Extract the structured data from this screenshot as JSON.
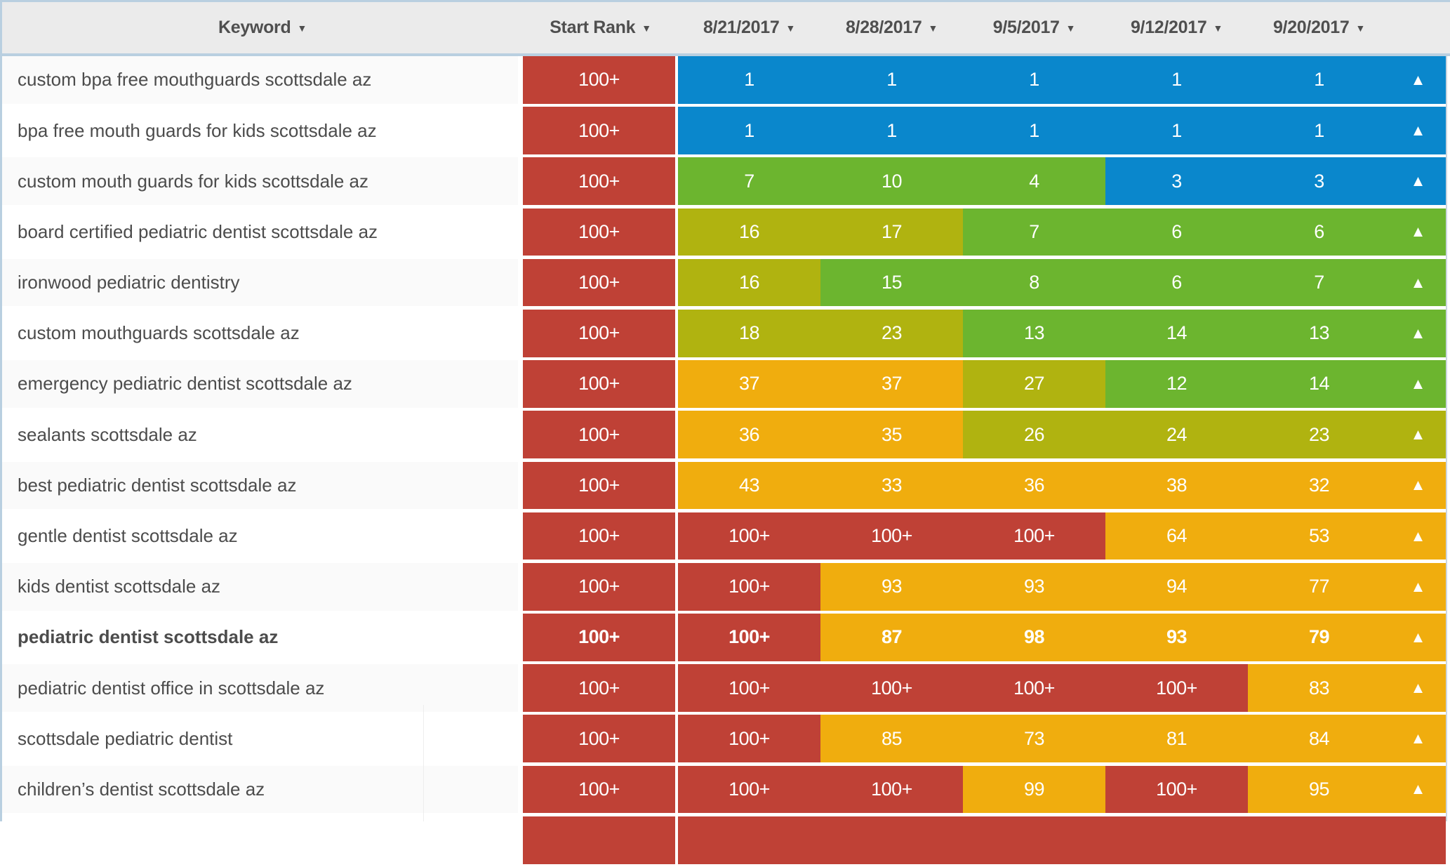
{
  "table": {
    "columns": [
      {
        "label": "Keyword",
        "sort_icon": "▼"
      },
      {
        "label": "Start Rank",
        "sort_icon": "▼"
      },
      {
        "label": "8/21/2017",
        "sort_icon": "▼"
      },
      {
        "label": "8/28/2017",
        "sort_icon": "▼"
      },
      {
        "label": "9/5/2017",
        "sort_icon": "▼"
      },
      {
        "label": "9/12/2017",
        "sort_icon": "▼"
      },
      {
        "label": "9/20/2017",
        "sort_icon": "▼"
      }
    ],
    "rows": [
      {
        "keyword": "custom bpa free mouthguards scottsdale az",
        "bold": false,
        "start_rank": "100+",
        "start_rank_color": "red",
        "cells": [
          {
            "text": "1",
            "color": "blue"
          },
          {
            "text": "1",
            "color": "blue"
          },
          {
            "text": "1",
            "color": "blue"
          },
          {
            "text": "1",
            "color": "blue"
          },
          {
            "text": "1",
            "color": "blue"
          }
        ],
        "trend": {
          "icon": "▲",
          "color": "blue"
        }
      },
      {
        "keyword": "bpa free mouth guards for kids scottsdale az",
        "bold": false,
        "start_rank": "100+",
        "start_rank_color": "red",
        "cells": [
          {
            "text": "1",
            "color": "blue"
          },
          {
            "text": "1",
            "color": "blue"
          },
          {
            "text": "1",
            "color": "blue"
          },
          {
            "text": "1",
            "color": "blue"
          },
          {
            "text": "1",
            "color": "blue"
          }
        ],
        "trend": {
          "icon": "▲",
          "color": "blue"
        }
      },
      {
        "keyword": "custom mouth guards for kids scottsdale az",
        "bold": false,
        "start_rank": "100+",
        "start_rank_color": "red",
        "cells": [
          {
            "text": "7",
            "color": "green"
          },
          {
            "text": "10",
            "color": "green"
          },
          {
            "text": "4",
            "color": "green"
          },
          {
            "text": "3",
            "color": "blue"
          },
          {
            "text": "3",
            "color": "blue"
          }
        ],
        "trend": {
          "icon": "▲",
          "color": "blue"
        }
      },
      {
        "keyword": "board certified pediatric dentist scottsdale az",
        "bold": false,
        "start_rank": "100+",
        "start_rank_color": "red",
        "cells": [
          {
            "text": "16",
            "color": "olive"
          },
          {
            "text": "17",
            "color": "olive"
          },
          {
            "text": "7",
            "color": "green"
          },
          {
            "text": "6",
            "color": "green"
          },
          {
            "text": "6",
            "color": "green"
          }
        ],
        "trend": {
          "icon": "▲",
          "color": "green"
        }
      },
      {
        "keyword": "ironwood pediatric dentistry",
        "bold": false,
        "start_rank": "100+",
        "start_rank_color": "red",
        "cells": [
          {
            "text": "16",
            "color": "olive"
          },
          {
            "text": "15",
            "color": "green"
          },
          {
            "text": "8",
            "color": "green"
          },
          {
            "text": "6",
            "color": "green"
          },
          {
            "text": "7",
            "color": "green"
          }
        ],
        "trend": {
          "icon": "▲",
          "color": "green"
        }
      },
      {
        "keyword": "custom mouthguards scottsdale az",
        "bold": false,
        "start_rank": "100+",
        "start_rank_color": "red",
        "cells": [
          {
            "text": "18",
            "color": "olive"
          },
          {
            "text": "23",
            "color": "olive"
          },
          {
            "text": "13",
            "color": "green"
          },
          {
            "text": "14",
            "color": "green"
          },
          {
            "text": "13",
            "color": "green"
          }
        ],
        "trend": {
          "icon": "▲",
          "color": "green"
        }
      },
      {
        "keyword": "emergency pediatric dentist scottsdale az",
        "bold": false,
        "start_rank": "100+",
        "start_rank_color": "red",
        "cells": [
          {
            "text": "37",
            "color": "amber"
          },
          {
            "text": "37",
            "color": "amber"
          },
          {
            "text": "27",
            "color": "olive"
          },
          {
            "text": "12",
            "color": "green"
          },
          {
            "text": "14",
            "color": "green"
          }
        ],
        "trend": {
          "icon": "▲",
          "color": "green"
        }
      },
      {
        "keyword": "sealants scottsdale az",
        "bold": false,
        "start_rank": "100+",
        "start_rank_color": "red",
        "cells": [
          {
            "text": "36",
            "color": "amber"
          },
          {
            "text": "35",
            "color": "amber"
          },
          {
            "text": "26",
            "color": "olive"
          },
          {
            "text": "24",
            "color": "olive"
          },
          {
            "text": "23",
            "color": "olive"
          }
        ],
        "trend": {
          "icon": "▲",
          "color": "olive"
        }
      },
      {
        "keyword": "best pediatric dentist scottsdale az",
        "bold": false,
        "start_rank": "100+",
        "start_rank_color": "red",
        "cells": [
          {
            "text": "43",
            "color": "amber"
          },
          {
            "text": "33",
            "color": "amber"
          },
          {
            "text": "36",
            "color": "amber"
          },
          {
            "text": "38",
            "color": "amber"
          },
          {
            "text": "32",
            "color": "amber"
          }
        ],
        "trend": {
          "icon": "▲",
          "color": "amber"
        }
      },
      {
        "keyword": "gentle dentist scottsdale az",
        "bold": false,
        "start_rank": "100+",
        "start_rank_color": "red",
        "cells": [
          {
            "text": "100+",
            "color": "red"
          },
          {
            "text": "100+",
            "color": "red"
          },
          {
            "text": "100+",
            "color": "red"
          },
          {
            "text": "64",
            "color": "amber"
          },
          {
            "text": "53",
            "color": "amber"
          }
        ],
        "trend": {
          "icon": "▲",
          "color": "amber"
        }
      },
      {
        "keyword": "kids dentist scottsdale az",
        "bold": false,
        "start_rank": "100+",
        "start_rank_color": "red",
        "cells": [
          {
            "text": "100+",
            "color": "red"
          },
          {
            "text": "93",
            "color": "amber"
          },
          {
            "text": "93",
            "color": "amber"
          },
          {
            "text": "94",
            "color": "amber"
          },
          {
            "text": "77",
            "color": "amber"
          }
        ],
        "trend": {
          "icon": "▲",
          "color": "amber"
        }
      },
      {
        "keyword": "pediatric dentist scottsdale az",
        "bold": true,
        "start_rank": "100+",
        "start_rank_color": "red",
        "cells": [
          {
            "text": "100+",
            "color": "red"
          },
          {
            "text": "87",
            "color": "amber"
          },
          {
            "text": "98",
            "color": "amber"
          },
          {
            "text": "93",
            "color": "amber"
          },
          {
            "text": "79",
            "color": "amber"
          }
        ],
        "trend": {
          "icon": "▲",
          "color": "amber"
        }
      },
      {
        "keyword": "pediatric dentist office in scottsdale az",
        "bold": false,
        "start_rank": "100+",
        "start_rank_color": "red",
        "cells": [
          {
            "text": "100+",
            "color": "red"
          },
          {
            "text": "100+",
            "color": "red"
          },
          {
            "text": "100+",
            "color": "red"
          },
          {
            "text": "100+",
            "color": "red"
          },
          {
            "text": "83",
            "color": "amber"
          }
        ],
        "trend": {
          "icon": "▲",
          "color": "amber"
        }
      },
      {
        "keyword": "scottsdale pediatric dentist",
        "bold": false,
        "start_rank": "100+",
        "start_rank_color": "red",
        "cells": [
          {
            "text": "100+",
            "color": "red"
          },
          {
            "text": "85",
            "color": "amber"
          },
          {
            "text": "73",
            "color": "amber"
          },
          {
            "text": "81",
            "color": "amber"
          },
          {
            "text": "84",
            "color": "amber"
          }
        ],
        "trend": {
          "icon": "▲",
          "color": "amber"
        }
      },
      {
        "keyword": "children’s dentist scottsdale az",
        "bold": false,
        "start_rank": "100+",
        "start_rank_color": "red",
        "cells": [
          {
            "text": "100+",
            "color": "red"
          },
          {
            "text": "100+",
            "color": "red"
          },
          {
            "text": "99",
            "color": "amber"
          },
          {
            "text": "100+",
            "color": "red"
          },
          {
            "text": "95",
            "color": "amber"
          }
        ],
        "trend": {
          "icon": "▲",
          "color": "amber"
        }
      },
      {
        "keyword": "",
        "bold": false,
        "start_rank": "",
        "start_rank_color": "red",
        "cells": [
          {
            "text": "",
            "color": "red"
          },
          {
            "text": "",
            "color": "red"
          },
          {
            "text": "",
            "color": "red"
          },
          {
            "text": "",
            "color": "red"
          },
          {
            "text": "",
            "color": "red"
          }
        ],
        "trend": {
          "icon": "",
          "color": "red"
        }
      }
    ]
  },
  "colors": {
    "red": "#bf4136",
    "blue": "#0a87cc",
    "green": "#6cb52f",
    "olive": "#b0b310",
    "amber": "#f0ad0e",
    "header_bg": "#ebebeb",
    "header_text": "#4f4f4f",
    "keyword_text": "#4c4c4c",
    "zebra_gray": "#fafafa",
    "frame_border": "#b9cfe0"
  }
}
